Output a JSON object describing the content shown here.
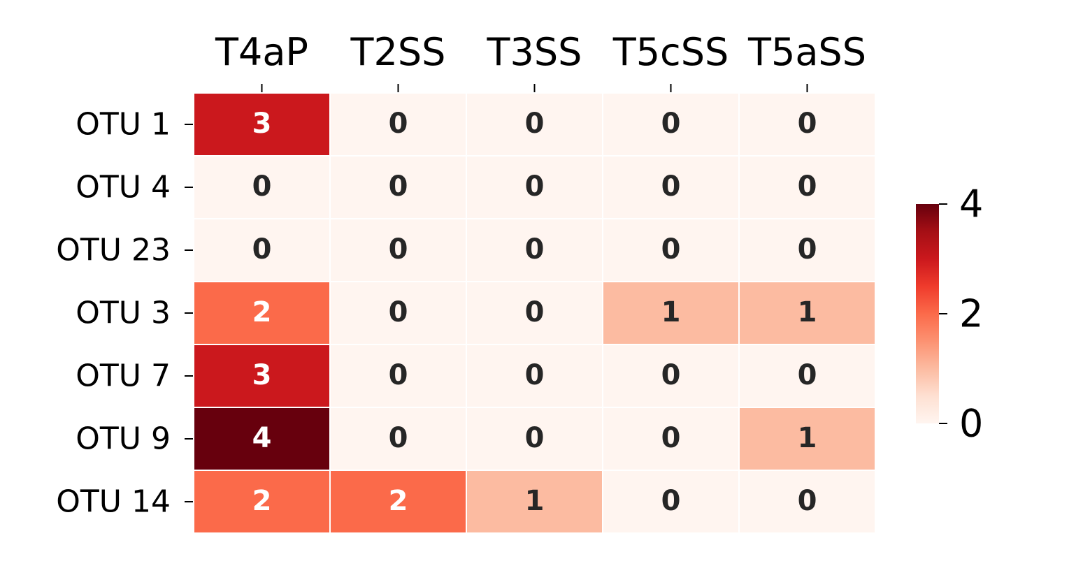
{
  "chart_data": {
    "type": "heatmap",
    "title": "",
    "xlabel": "",
    "ylabel": "",
    "x_categories": [
      "T4aP",
      "T2SS",
      "T3SS",
      "T5cSS",
      "T5aSS"
    ],
    "y_categories": [
      "OTU 1",
      "OTU 4",
      "OTU 23",
      "OTU 3",
      "OTU 7",
      "OTU 9",
      "OTU 14"
    ],
    "values": [
      [
        3,
        0,
        0,
        0,
        0
      ],
      [
        0,
        0,
        0,
        0,
        0
      ],
      [
        0,
        0,
        0,
        0,
        0
      ],
      [
        2,
        0,
        0,
        1,
        1
      ],
      [
        3,
        0,
        0,
        0,
        0
      ],
      [
        4,
        0,
        0,
        0,
        1
      ],
      [
        2,
        2,
        1,
        0,
        0
      ]
    ],
    "value_labels": [
      [
        "3",
        "0",
        "0",
        "0",
        "0"
      ],
      [
        "0",
        "0",
        "0",
        "0",
        "0"
      ],
      [
        "0",
        "0",
        "0",
        "0",
        "0"
      ],
      [
        "2",
        "0",
        "0",
        "1",
        "1"
      ],
      [
        "3",
        "0",
        "0",
        "0",
        "0"
      ],
      [
        "4",
        "0",
        "0",
        "0",
        "1"
      ],
      [
        "2",
        "2",
        "1",
        "0",
        "0"
      ]
    ],
    "x_axis_position": "top",
    "colormap": "Reds",
    "vmin": 0,
    "vmax": 4,
    "colorbar": {
      "ticks": [
        0,
        2,
        4
      ],
      "tick_labels": [
        "0",
        "2",
        "4"
      ]
    },
    "grid": false,
    "annotation_colors": {
      "dark": "#262626",
      "light": "#ffffff"
    }
  }
}
